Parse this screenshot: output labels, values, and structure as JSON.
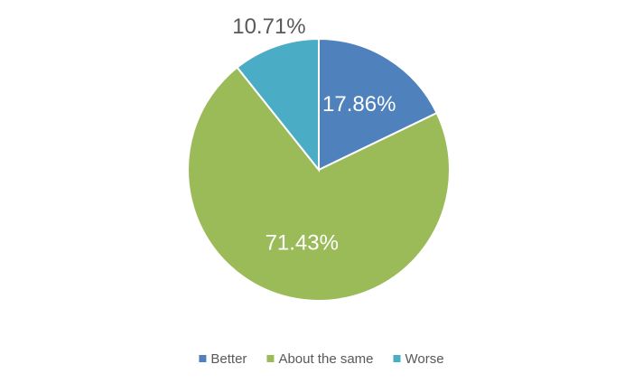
{
  "chart_data": {
    "type": "pie",
    "categories": [
      "Better",
      "About the same",
      "Worse"
    ],
    "values": [
      17.86,
      71.43,
      10.71
    ],
    "value_labels": [
      "17.86%",
      "71.43%",
      "10.71%"
    ],
    "colors": [
      "#4f81bd",
      "#9bbb59",
      "#4bacc6"
    ],
    "legend": "bottom"
  }
}
